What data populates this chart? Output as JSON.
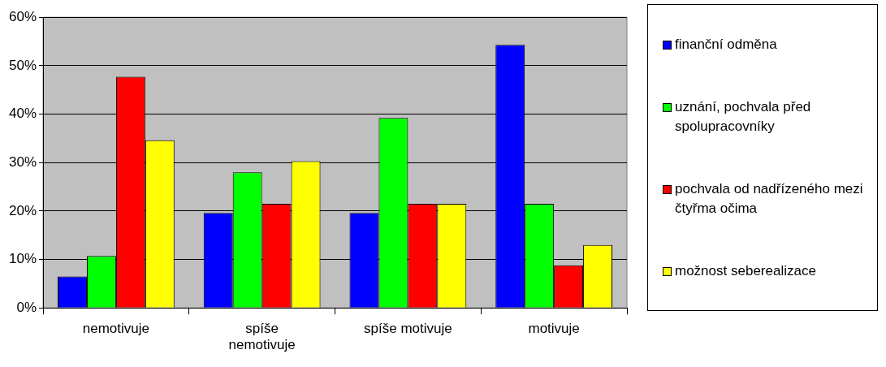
{
  "chart_data": {
    "type": "bar",
    "categories": [
      "nemotivuje",
      "spíše nemotivuje",
      "spíše motivuje",
      "motivuje"
    ],
    "series": [
      {
        "name": "finanční odměna",
        "color": "#0000ff",
        "values": [
          6.5,
          19.6,
          19.6,
          54.3
        ]
      },
      {
        "name": "uznání, pochvala před spolupracovníky",
        "color": "#00ff00",
        "values": [
          10.7,
          28.0,
          39.2,
          21.5
        ]
      },
      {
        "name": "pochvala od nadřízeného mezi čtyřma očima",
        "color": "#ff0000",
        "values": [
          47.7,
          21.5,
          21.5,
          8.8
        ]
      },
      {
        "name": "možnost seberealizace",
        "color": "#ffff00",
        "values": [
          34.6,
          30.3,
          21.5,
          13.0
        ]
      }
    ],
    "ylim": [
      0,
      60
    ],
    "yticks": [
      {
        "value": 0,
        "label": "0%"
      },
      {
        "value": 10,
        "label": "10%"
      },
      {
        "value": 20,
        "label": "20%"
      },
      {
        "value": 30,
        "label": "30%"
      },
      {
        "value": 40,
        "label": "40%"
      },
      {
        "value": 50,
        "label": "50%"
      },
      {
        "value": 60,
        "label": "60%"
      }
    ],
    "grid": "y",
    "legend": "right"
  }
}
